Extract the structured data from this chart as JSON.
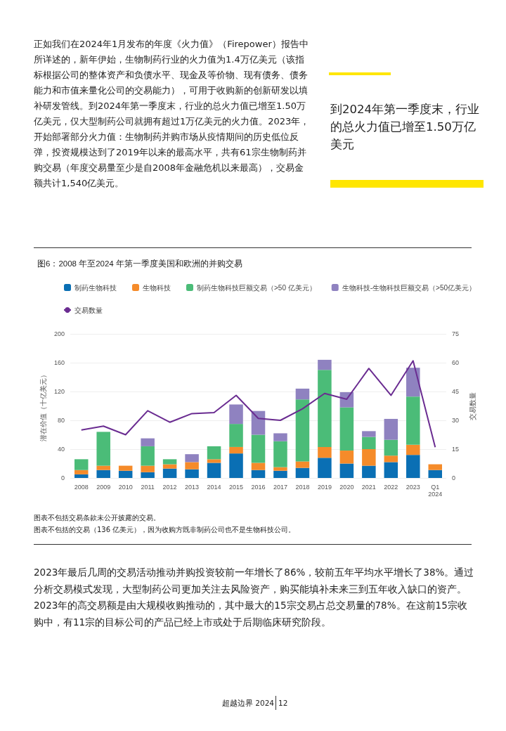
{
  "chart_data": {
    "type": "bar",
    "stacked": true,
    "title": "图6：2008 年至2024 年第一季度美国和欧洲的并购交易",
    "ylabel": "潜在价值（十亿美元）",
    "y2label": "交易数量",
    "categories": [
      "2008",
      "2009",
      "2010",
      "2011",
      "2012",
      "2013",
      "2014",
      "2015",
      "2016",
      "2017",
      "2018",
      "2019",
      "2020",
      "2021",
      "2022",
      "2023",
      "Q1\n2024"
    ],
    "series": [
      {
        "name": "制药生物科技",
        "color": "#0a6fb4",
        "values": [
          5,
          11,
          10,
          8,
          13,
          12,
          21,
          34,
          11,
          10,
          14,
          28,
          20,
          17,
          22,
          32,
          11
        ]
      },
      {
        "name": "生物科技",
        "color": "#f58b2a",
        "values": [
          6,
          6,
          7,
          9,
          6,
          10,
          5,
          9,
          10,
          5,
          9,
          15,
          18,
          23,
          9,
          14,
          8
        ]
      },
      {
        "name": "制药生物科技巨额交易（>50 亿美元）",
        "color": "#4bbc78",
        "values": [
          15,
          47,
          0,
          27,
          7,
          0,
          18,
          32,
          39,
          36,
          86,
          107,
          60,
          17,
          22,
          67,
          0
        ]
      },
      {
        "name": "生物科技-生物科技巨额交易（>50亿美元）",
        "color": "#8f82c0",
        "values": [
          0,
          0,
          0,
          11,
          0,
          11,
          0,
          27,
          33,
          11,
          15,
          14,
          21,
          8,
          29,
          40,
          0
        ]
      },
      {
        "name": "交易数量",
        "type": "line",
        "axis": "y2",
        "color": "#6a2c91",
        "values": [
          25,
          27,
          22.5,
          35,
          29,
          33.5,
          34,
          43,
          31,
          30,
          36,
          44,
          41,
          57,
          43,
          61,
          16
        ]
      }
    ],
    "ylim": [
      0,
      200
    ],
    "yticks": [
      0,
      40,
      80,
      120,
      160,
      200
    ],
    "y2lim": [
      0,
      75
    ],
    "y2ticks": [
      0,
      15,
      30,
      45,
      60,
      75
    ],
    "grid": "y",
    "legend": "top",
    "marker": "none",
    "line_style": "solid",
    "annotations": [
      "正如我们在2024年1月发布的年度《火力值》（Firepower）报告中所详述的，新年伊始，生物制药行业的火力值为1.4万亿美元（该指标根据公司的整体资产和负债水平、现金及等价物、现有债务、债务能力和市值来量化公司的交易能力），可用于收购新的创新研发以填补研发管线。到2024年第一季度末，行业的总火力值已增至1.50万亿美元，仅大型制药公司就拥有超过1万亿美元的火力值。2023年，开始部署部分火力值：生物制药并购市场从疫情期间的历史低位反弹，投资规模达到了2019年以来的最高水平，共有61宗生物制药并购交易（年度交易量至少是自2008年金融危机以来最高），交易金额共计1,540亿美元。",
      "到2024年第一季度末，行业的总火力值已增至1.50万亿美元",
      "图表不包括交易条款未公开披露的交易。",
      "图表不包括的交易（136 亿美元），因为收购方既非制药公司也不是生物科技公司。",
      "2023年最后几周的交易活动推动并购投资较前一年增长了86%，较前五年平均水平增长了38%。通过分析交易模式发现，大型制药公司更加关注去风险资产，购买能填补未来三到五年收入缺口的资产。2023年的高交易额是由大规模收购推动的，其中最大的15宗交易占总交易量的78%。在这前15宗收购中，有11宗的目标公司的产品已经上市或处于后期临床研究阶段。",
      "超越边界 2024",
      "12"
    ]
  }
}
